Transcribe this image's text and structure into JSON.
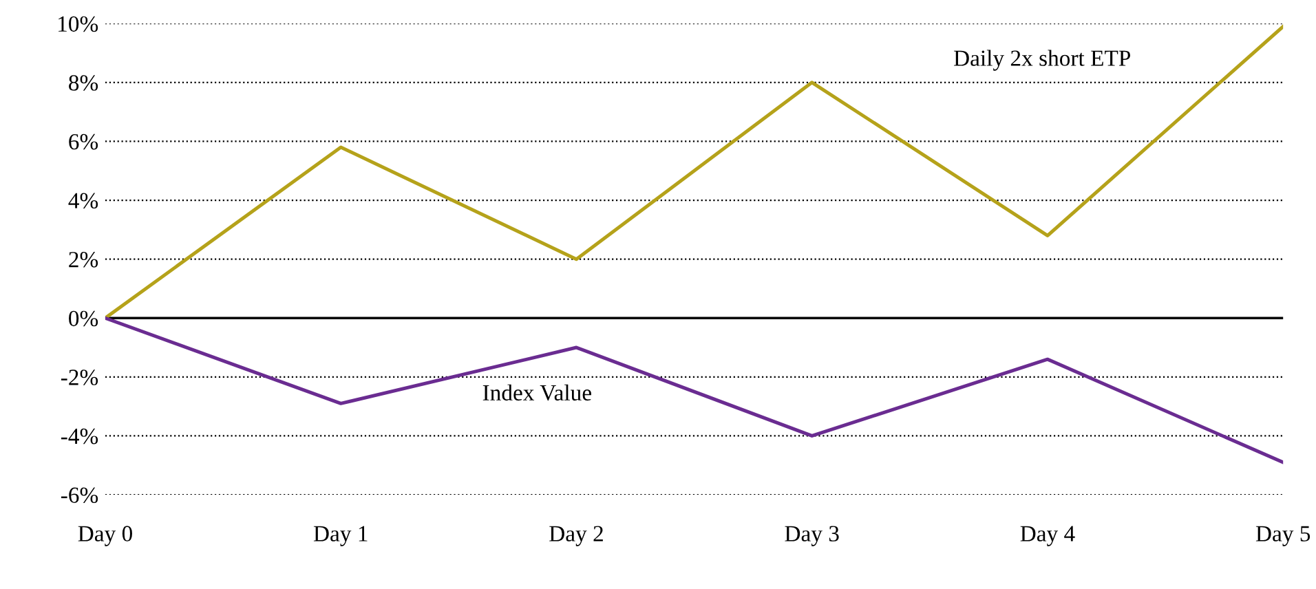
{
  "chart_data": {
    "type": "line",
    "categories": [
      "Day 0",
      "Day 1",
      "Day 2",
      "Day 3",
      "Day 4",
      "Day 5"
    ],
    "series": [
      {
        "name": "Daily 2x short ETP",
        "color": "#b5a21a",
        "values": [
          0,
          5.8,
          2.0,
          8.0,
          2.8,
          9.9
        ]
      },
      {
        "name": "Index Value",
        "color": "#6a2c91",
        "values": [
          0,
          -2.9,
          -1.0,
          -4.0,
          -1.4,
          -4.9
        ]
      }
    ],
    "ylim": [
      -6,
      10
    ],
    "yticks": [
      {
        "value": -6,
        "label": "-6%"
      },
      {
        "value": -4,
        "label": "-4%"
      },
      {
        "value": -2,
        "label": "-2%"
      },
      {
        "value": 0,
        "label": "0%"
      },
      {
        "value": 2,
        "label": "2%"
      },
      {
        "value": 4,
        "label": "4%"
      },
      {
        "value": 6,
        "label": "6%"
      },
      {
        "value": 8,
        "label": "8%"
      },
      {
        "value": 10,
        "label": "10%"
      }
    ],
    "ref_lines": [
      {
        "axis": "y",
        "value": 0,
        "color": "#000000",
        "line_style": "solid"
      }
    ],
    "grid": "y",
    "legend": false,
    "marker": "none",
    "line_style": "solid"
  }
}
